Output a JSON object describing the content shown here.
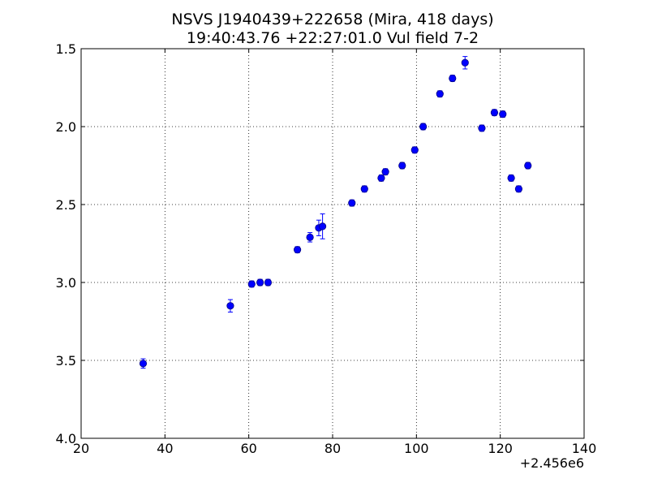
{
  "chart_data": {
    "type": "scatter",
    "title": "NSVS J1940439+222658 (Mira, 418 days)",
    "subtitle": "19:40:43.76 +22:27:01.0 Vul field 7-2",
    "xlabel": "",
    "ylabel": "",
    "x_offset_label": "+2.456e6",
    "xlim": [
      20,
      140
    ],
    "ylim": [
      4.0,
      1.5
    ],
    "y_inverted": true,
    "grid": true,
    "x_ticks": [
      20,
      40,
      60,
      80,
      100,
      120,
      140
    ],
    "y_ticks": [
      1.5,
      2.0,
      2.5,
      3.0,
      3.5,
      4.0
    ],
    "x_tick_labels": [
      "20",
      "40",
      "60",
      "80",
      "100",
      "120",
      "140"
    ],
    "y_tick_labels": [
      "1.5",
      "2.0",
      "2.5",
      "3.0",
      "3.5",
      "4.0"
    ],
    "marker_color": "#0000ff",
    "marker_edge": "#000080",
    "error_color": "#0000ff",
    "series": [
      {
        "points": [
          {
            "x": 34.8,
            "y": 3.52,
            "err": 0.03
          },
          {
            "x": 55.6,
            "y": 3.15,
            "err": 0.04
          },
          {
            "x": 60.7,
            "y": 3.01,
            "err": 0.02
          },
          {
            "x": 62.7,
            "y": 3.0,
            "err": 0.02
          },
          {
            "x": 64.6,
            "y": 3.0,
            "err": 0.02
          },
          {
            "x": 71.6,
            "y": 2.79,
            "err": 0.02
          },
          {
            "x": 74.6,
            "y": 2.71,
            "err": 0.03
          },
          {
            "x": 76.7,
            "y": 2.65,
            "err": 0.05
          },
          {
            "x": 77.6,
            "y": 2.64,
            "err": 0.08
          },
          {
            "x": 84.6,
            "y": 2.49,
            "err": 0.02
          },
          {
            "x": 87.6,
            "y": 2.4,
            "err": 0.02
          },
          {
            "x": 91.6,
            "y": 2.33,
            "err": 0.02
          },
          {
            "x": 92.6,
            "y": 2.29,
            "err": 0.02
          },
          {
            "x": 96.6,
            "y": 2.25,
            "err": 0.02
          },
          {
            "x": 99.6,
            "y": 2.15,
            "err": 0.02
          },
          {
            "x": 101.6,
            "y": 2.0,
            "err": 0.02
          },
          {
            "x": 105.6,
            "y": 1.79,
            "err": 0.02
          },
          {
            "x": 108.6,
            "y": 1.69,
            "err": 0.02
          },
          {
            "x": 111.6,
            "y": 1.59,
            "err": 0.04
          },
          {
            "x": 115.6,
            "y": 2.01,
            "err": 0.02
          },
          {
            "x": 118.6,
            "y": 1.91,
            "err": 0.02
          },
          {
            "x": 120.6,
            "y": 1.92,
            "err": 0.02
          },
          {
            "x": 122.6,
            "y": 2.33,
            "err": 0.02
          },
          {
            "x": 124.4,
            "y": 2.4,
            "err": 0.02
          },
          {
            "x": 126.6,
            "y": 2.25,
            "err": 0.02
          }
        ]
      }
    ]
  }
}
